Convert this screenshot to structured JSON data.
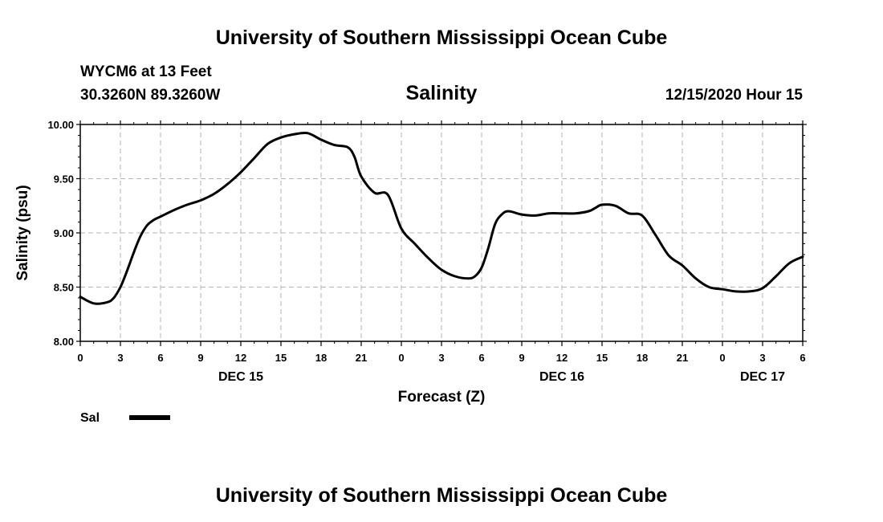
{
  "header": {
    "org_title": "University of Southern Mississippi Ocean Cube",
    "station_line1": "WYCM6 at 13 Feet",
    "station_line2": "30.3260N 89.3260W",
    "chart_title": "Salinity",
    "issued": "12/15/2020 Hour 15"
  },
  "footer": {
    "org_title": "University of Southern Mississippi Ocean Cube"
  },
  "legend": {
    "label": "Sal",
    "color": "#000000"
  },
  "chart_data": {
    "type": "line",
    "title": "Salinity",
    "xlabel": "Forecast (Z)",
    "ylabel": "Salinity (psu)",
    "ylim": [
      8.0,
      10.0
    ],
    "yticks": [
      "8.00",
      "8.50",
      "9.00",
      "9.50",
      "10.00"
    ],
    "xlim": [
      0,
      54
    ],
    "xticks": [
      {
        "h": 0,
        "label": "0"
      },
      {
        "h": 3,
        "label": "3"
      },
      {
        "h": 6,
        "label": "6"
      },
      {
        "h": 9,
        "label": "9"
      },
      {
        "h": 12,
        "label": "12"
      },
      {
        "h": 15,
        "label": "15"
      },
      {
        "h": 18,
        "label": "18"
      },
      {
        "h": 21,
        "label": "21"
      },
      {
        "h": 24,
        "label": "0"
      },
      {
        "h": 27,
        "label": "3"
      },
      {
        "h": 30,
        "label": "6"
      },
      {
        "h": 33,
        "label": "9"
      },
      {
        "h": 36,
        "label": "12"
      },
      {
        "h": 39,
        "label": "15"
      },
      {
        "h": 42,
        "label": "18"
      },
      {
        "h": 45,
        "label": "21"
      },
      {
        "h": 48,
        "label": "0"
      },
      {
        "h": 51,
        "label": "3"
      },
      {
        "h": 54,
        "label": "6"
      }
    ],
    "day_labels": [
      {
        "h": 12,
        "label": "DEC 15"
      },
      {
        "h": 36,
        "label": "DEC 16"
      },
      {
        "h": 51,
        "label": "DEC 17"
      }
    ],
    "grid": true,
    "legend_position": "bottom-left",
    "series": [
      {
        "name": "Sal",
        "color": "#000000",
        "x": [
          0,
          1,
          2,
          2.5,
          3,
          3.5,
          4,
          4.5,
          5,
          5.5,
          6,
          7,
          8,
          9,
          10,
          11,
          12,
          13,
          14,
          15,
          16,
          17,
          18,
          19,
          20,
          20.5,
          21,
          22,
          23,
          24,
          25,
          26,
          27,
          28,
          29,
          29.5,
          30,
          30.5,
          31,
          31.5,
          32,
          33,
          34,
          35,
          36,
          37,
          38,
          38.5,
          39,
          40,
          41,
          42,
          43,
          44,
          45,
          46,
          47,
          48,
          49,
          50,
          51,
          52,
          53,
          54
        ],
        "y": [
          8.41,
          8.35,
          8.36,
          8.4,
          8.5,
          8.65,
          8.82,
          8.97,
          9.07,
          9.12,
          9.15,
          9.21,
          9.26,
          9.3,
          9.36,
          9.45,
          9.56,
          9.69,
          9.82,
          9.88,
          9.91,
          9.92,
          9.86,
          9.81,
          9.79,
          9.7,
          9.52,
          9.37,
          9.35,
          9.04,
          8.9,
          8.77,
          8.66,
          8.6,
          8.58,
          8.6,
          8.68,
          8.86,
          9.08,
          9.17,
          9.2,
          9.17,
          9.16,
          9.18,
          9.18,
          9.18,
          9.2,
          9.23,
          9.26,
          9.25,
          9.18,
          9.16,
          8.98,
          8.79,
          8.7,
          8.58,
          8.5,
          8.48,
          8.46,
          8.46,
          8.49,
          8.6,
          8.72,
          8.78
        ]
      }
    ]
  }
}
